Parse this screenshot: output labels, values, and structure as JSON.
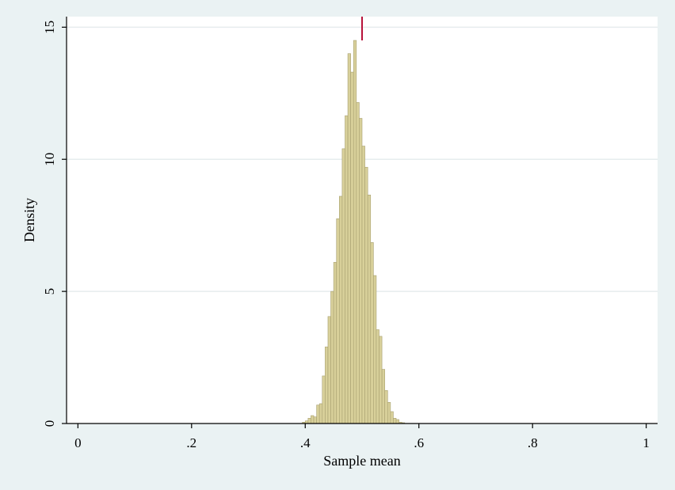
{
  "chart_data": {
    "type": "bar",
    "title": "",
    "xlabel": "Sample mean",
    "ylabel": "Density",
    "xlim": [
      -0.02,
      1.02
    ],
    "ylim": [
      0,
      15.4
    ],
    "xticks": [
      {
        "value": 0,
        "label": "0"
      },
      {
        "value": 0.2,
        "label": ".2"
      },
      {
        "value": 0.4,
        "label": ".4"
      },
      {
        "value": 0.6,
        "label": ".6"
      },
      {
        "value": 0.8,
        "label": ".8"
      },
      {
        "value": 1,
        "label": "1"
      }
    ],
    "yticks": [
      {
        "value": 0,
        "label": "0"
      },
      {
        "value": 5,
        "label": "5"
      },
      {
        "value": 10,
        "label": "10"
      },
      {
        "value": 15,
        "label": "15"
      }
    ],
    "grid": true,
    "bin_width": 0.005,
    "bins": [
      {
        "x": 0.395,
        "density": 0.05
      },
      {
        "x": 0.4,
        "density": 0.1
      },
      {
        "x": 0.405,
        "density": 0.2
      },
      {
        "x": 0.41,
        "density": 0.3
      },
      {
        "x": 0.415,
        "density": 0.25
      },
      {
        "x": 0.42,
        "density": 0.7
      },
      {
        "x": 0.425,
        "density": 0.75
      },
      {
        "x": 0.43,
        "density": 1.8
      },
      {
        "x": 0.435,
        "density": 2.9
      },
      {
        "x": 0.44,
        "density": 4.05
      },
      {
        "x": 0.445,
        "density": 5.0
      },
      {
        "x": 0.45,
        "density": 6.1
      },
      {
        "x": 0.455,
        "density": 7.75
      },
      {
        "x": 0.46,
        "density": 8.6
      },
      {
        "x": 0.465,
        "density": 10.4
      },
      {
        "x": 0.47,
        "density": 11.65
      },
      {
        "x": 0.475,
        "density": 14.0
      },
      {
        "x": 0.48,
        "density": 13.3
      },
      {
        "x": 0.485,
        "density": 14.5
      },
      {
        "x": 0.49,
        "density": 12.15
      },
      {
        "x": 0.495,
        "density": 11.55
      },
      {
        "x": 0.5,
        "density": 10.5
      },
      {
        "x": 0.505,
        "density": 9.7
      },
      {
        "x": 0.51,
        "density": 8.65
      },
      {
        "x": 0.515,
        "density": 6.85
      },
      {
        "x": 0.52,
        "density": 5.6
      },
      {
        "x": 0.525,
        "density": 3.55
      },
      {
        "x": 0.53,
        "density": 3.3
      },
      {
        "x": 0.535,
        "density": 2.05
      },
      {
        "x": 0.54,
        "density": 1.25
      },
      {
        "x": 0.545,
        "density": 0.8
      },
      {
        "x": 0.55,
        "density": 0.45
      },
      {
        "x": 0.555,
        "density": 0.2
      },
      {
        "x": 0.56,
        "density": 0.15
      },
      {
        "x": 0.565,
        "density": 0.05
      },
      {
        "x": 0.57,
        "density": 0.03
      }
    ],
    "reference_line": {
      "x": 0.5,
      "color": "#b8123a"
    },
    "colors": {
      "bar_fill": "#d8d09a",
      "bar_stroke": "#a8a070",
      "plot_bg": "#ffffff",
      "page_bg": "#eaf2f3",
      "grid": "#e6ecee",
      "axis": "#000000"
    }
  }
}
